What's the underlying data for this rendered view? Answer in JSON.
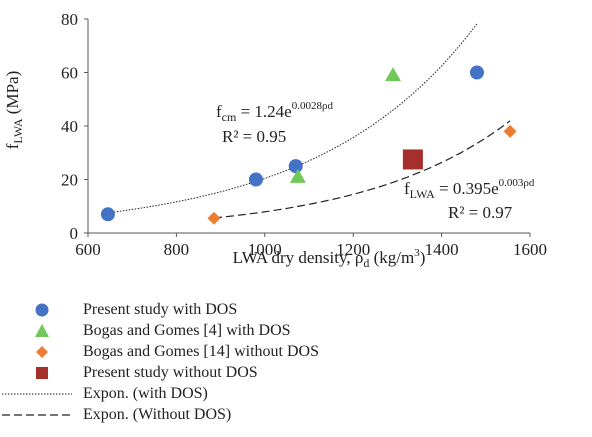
{
  "chart_data": {
    "type": "scatter",
    "xlabel": "LWA dry density, ρd (kg/m3)",
    "xlabel_parts": {
      "main": "LWA dry density, ρ",
      "sub": "d",
      "mid": " (kg/m",
      "sup": "3",
      "end": ")"
    },
    "ylabel": "fLWA (MPa)",
    "ylabel_parts": {
      "main": "f",
      "sub": "LWA",
      "end": " (MPa)"
    },
    "xlim": [
      600,
      1600
    ],
    "ylim": [
      0,
      80
    ],
    "xticks": [
      "600",
      "800",
      "1000",
      "1200",
      "1400",
      "1600"
    ],
    "yticks": [
      "0",
      "20",
      "40",
      "60",
      "80"
    ],
    "grid": false,
    "legend_position": "bottom",
    "series": [
      {
        "name": "Present study with DOS",
        "marker": "circle",
        "color": "#4472C4",
        "x": [
          645,
          980,
          1070,
          1480
        ],
        "y": [
          7,
          20,
          25,
          60
        ]
      },
      {
        "name": "Bogas and Gomes [4] with DOS",
        "marker": "triangle",
        "color": "#70C85A",
        "x": [
          1075,
          1290
        ],
        "y": [
          21,
          59
        ]
      },
      {
        "name": "Bogas and Gomes [14] without DOS",
        "marker": "diamond",
        "color": "#ED7D31",
        "x": [
          885,
          1555
        ],
        "y": [
          5.5,
          38
        ]
      },
      {
        "name": "Present study without DOS",
        "marker": "square",
        "color": "#A5302B",
        "x": [
          1335
        ],
        "y": [
          27.5
        ]
      }
    ],
    "trendlines": [
      {
        "name": "Expon. (with DOS)",
        "style": "dotted",
        "coef": 1.24,
        "exp": 0.0028,
        "x_range": [
          645,
          1480
        ]
      },
      {
        "name": "Expon. (Without DOS)",
        "style": "dashed",
        "coef": 0.395,
        "exp": 0.003,
        "x_range": [
          885,
          1555
        ]
      }
    ],
    "annotations": [
      {
        "equation_base": "f",
        "equation_sub": "cm",
        "equation_mid": " = 1.24e",
        "equation_sup": "0.0028ρd",
        "r2": "R² = 0.95"
      },
      {
        "equation_base": "f",
        "equation_sub": "LWA",
        "equation_mid": " = 0.395e",
        "equation_sup": "0.003ρd",
        "r2": "R² = 0.97"
      }
    ]
  },
  "colors": {
    "axis": "#595959",
    "text": "#222222"
  }
}
